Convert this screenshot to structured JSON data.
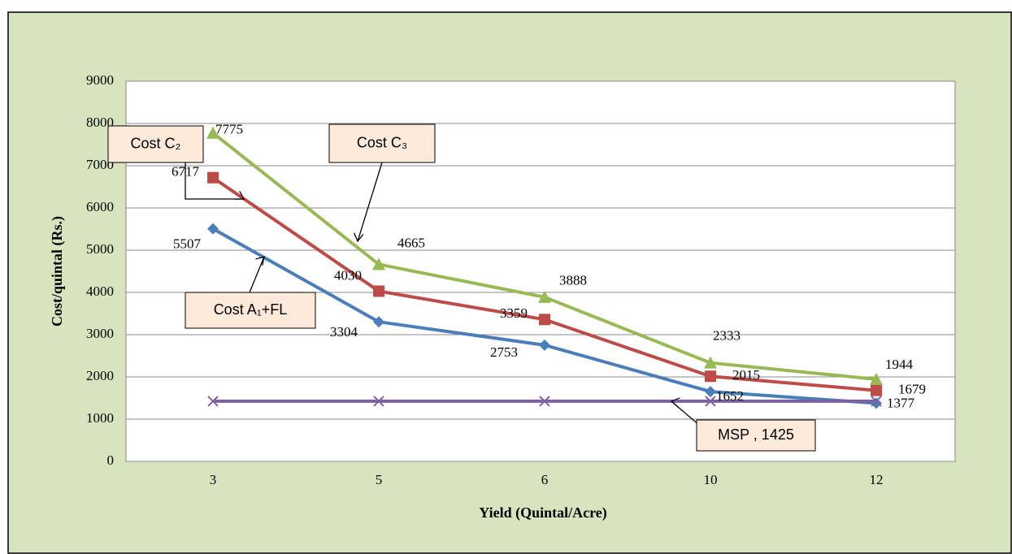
{
  "chart_data": {
    "type": "line",
    "xlabel": "Yield (Quintal/Acre)",
    "ylabel": "Cost/quintal (Rs.)",
    "categories": [
      "3",
      "5",
      "6",
      "10",
      "12"
    ],
    "ylim": [
      0,
      9000
    ],
    "yticks": [
      0,
      1000,
      2000,
      3000,
      4000,
      5000,
      6000,
      7000,
      8000,
      9000
    ],
    "grid": true,
    "series": [
      {
        "name": "Cost A₁+FL",
        "color": "#4a7ebb",
        "marker": "diamond",
        "values": [
          5507,
          3304,
          2753,
          1652,
          1377
        ]
      },
      {
        "name": "Cost C₂",
        "color": "#be4b48",
        "marker": "square",
        "values": [
          6717,
          4030,
          3359,
          2015,
          1679
        ]
      },
      {
        "name": "Cost C₃",
        "color": "#98b954",
        "marker": "triangle",
        "values": [
          7775,
          4665,
          3888,
          2333,
          1944
        ]
      },
      {
        "name": "MSP",
        "color": "#7d60a0",
        "marker": "x",
        "values": [
          1425,
          1425,
          1425,
          1425,
          1425
        ],
        "value_labels": [
          null,
          null,
          null,
          "MSP , 1425",
          null
        ]
      }
    ]
  }
}
